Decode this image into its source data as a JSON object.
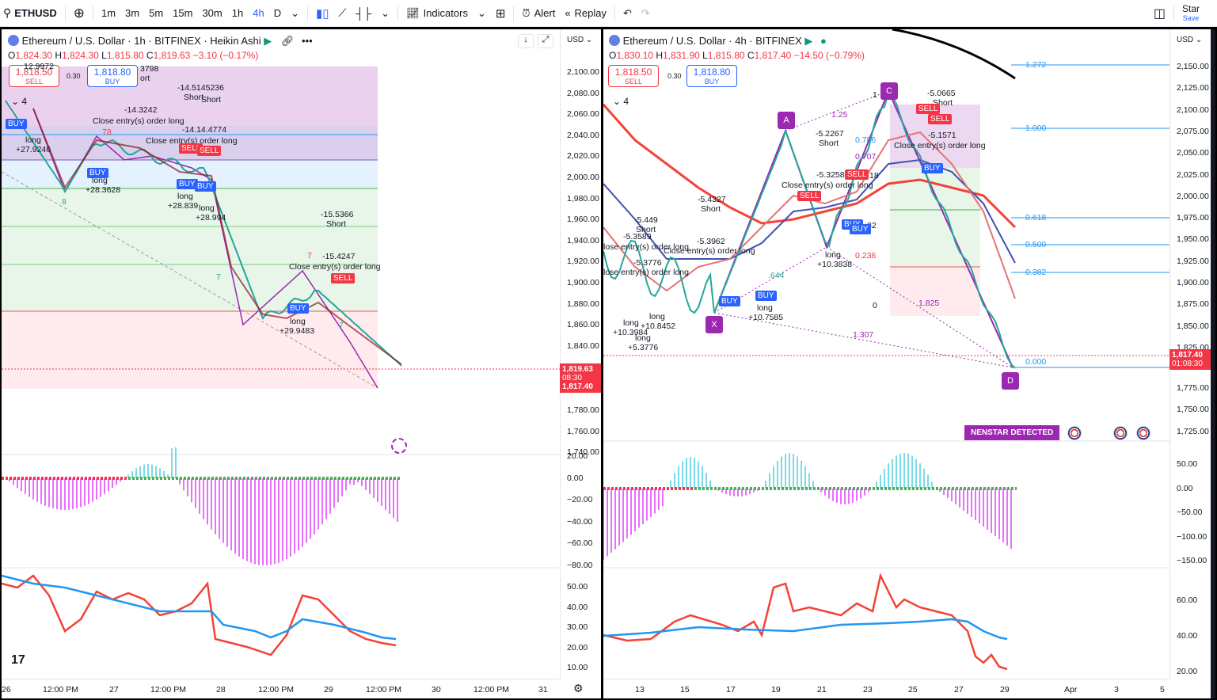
{
  "toolbar": {
    "symbol": "ETHUSD",
    "timeframes": [
      "1m",
      "3m",
      "5m",
      "15m",
      "30m",
      "1h",
      "4h",
      "D"
    ],
    "active_timeframe": "4h",
    "indicators_label": "Indicators",
    "alert_label": "Alert",
    "replay_label": "Replay",
    "right_label": "Star",
    "right_sub": "Save"
  },
  "left": {
    "title": "Ethereum / U.S. Dollar · 1h · BITFINEX · Heikin Ashi",
    "ohlc": {
      "o": "1,824.30",
      "h": "1,824.30",
      "l": "1,815.80",
      "c": "1,819.63",
      "chg": "−3.10 (−0.17%)"
    },
    "sell_price": "1,818.50",
    "sell_label": "SELL",
    "spread": "0.30",
    "buy_price": "1,818.80",
    "buy_label": "BUY",
    "currency": "USD",
    "counter": "4",
    "price_tag": {
      "price": "1,819.63",
      "time": "08:30",
      "low": "1,817.40"
    },
    "axis": [
      "2,100.00",
      "2,080.00",
      "2,060.00",
      "2,040.00",
      "2,020.00",
      "2,000.00",
      "1,980.00",
      "1,960.00",
      "1,940.00",
      "1,920.00",
      "1,900.00",
      "1,880.00",
      "1,860.00",
      "1,840.00",
      "1,780.00",
      "1,760.00",
      "1,740.00"
    ],
    "osc_axis": [
      "20.00",
      "0.00",
      "−20.00",
      "−40.00",
      "−60.00",
      "−80.00"
    ],
    "rsi_axis": [
      "50.00",
      "40.00",
      "30.00",
      "20.00",
      "10.00"
    ],
    "time_axis": [
      "26",
      "12:00 PM",
      "27",
      "12:00 PM",
      "28",
      "12:00 PM",
      "29",
      "12:00 PM",
      "30",
      "12:00 PM",
      "31"
    ],
    "labels": {
      "l1": "12.9972",
      "l2": "long",
      "l3": "+27.9246",
      "l4": "-14.3242",
      "l5": "Close entry(s) order long",
      "l6": "78",
      "l7": "-14.5145236",
      "l8": "Short",
      "l9": "Short",
      "l10": "-14.14.4774",
      "l11": "Close entry(s) order long",
      "l12": "long",
      "l13": "+28.3628",
      "l14": "long",
      "l15": "+28.839",
      "l16": "long",
      "l17": "+28.994",
      "l18": "-15.5366",
      "l19": "Short",
      "l20": "7",
      "l21": "-15.4247",
      "l22": "Close entry(s) order long",
      "l23": "long",
      "l24": "+29.9483",
      "l25": "8",
      "l26": "3798",
      "l27": "ort",
      "l28": "Short",
      "l29": "7",
      "l30": "7"
    }
  },
  "right": {
    "title": "Ethereum / U.S. Dollar · 4h · BITFINEX",
    "ohlc": {
      "o": "1,830.10",
      "h": "1,831.90",
      "l": "1,815.80",
      "c": "1,817.40",
      "chg": "−14.50 (−0.79%)"
    },
    "sell_price": "1,818.50",
    "sell_label": "SELL",
    "spread": "0.30",
    "buy_price": "1,818.80",
    "buy_label": "BUY",
    "currency": "USD",
    "counter": "4",
    "price_tag": {
      "price": "1,817.40",
      "time": "01:08:30"
    },
    "axis": [
      "2,150.00",
      "2,125.00",
      "2,100.00",
      "2,075.00",
      "2,050.00",
      "2,025.00",
      "2,000.00",
      "1,975.00",
      "1,950.00",
      "1,925.00",
      "1,900.00",
      "1,875.00",
      "1,850.00",
      "1,825.00",
      "1,775.00",
      "1,750.00",
      "1,725.00"
    ],
    "osc_axis": [
      "50.00",
      "0.00",
      "−50.00",
      "−100.00",
      "−150.00"
    ],
    "rsi_axis": [
      "60.00",
      "40.00",
      "20.00"
    ],
    "time_axis": [
      "13",
      "15",
      "17",
      "19",
      "21",
      "23",
      "25",
      "27",
      "29",
      "Apr",
      "3",
      "5"
    ],
    "fib": [
      "1.272",
      "1.000",
      "0.618",
      "0.500",
      "0.382",
      "0.000"
    ],
    "pattern": [
      "X",
      "A",
      "C",
      "D"
    ],
    "pattern_labels": {
      "r1": "1.25",
      "r2": "0.786",
      "r3": "0.707",
      "r4": "0.236",
      "r5": "1.825",
      "r6": "1.307",
      "r7": "0",
      "r8": "1",
      "r9": "18",
      "r10": "32",
      "r11": ".644"
    },
    "banner": "NENSTAR DETECTED",
    "labels": {
      "a1": "-5.449",
      "a2": "Short",
      "a3": "-5.3589",
      "a4": "lose entry(s) order long",
      "a5": "-5.3776",
      "a6": "lose entry(s) order long",
      "a7": "long",
      "a8": "+10.3984",
      "a9": "long",
      "a10": "+10.8452",
      "a11": "long",
      "a12": "+5.3776",
      "a13": "-5.4327",
      "a14": "Short",
      "a15": "-5.3962",
      "a16": "Close entry(s) order long",
      "a17": "long",
      "a18": "+10.7585",
      "a19": "-5.2267",
      "a20": "Short",
      "a21": "-5.3258",
      "a22": "Close entry(s) order long",
      "a23": "long",
      "a24": "+10.3838",
      "a25": "-5.0665",
      "a26": "Short",
      "a27": "-5.1571",
      "a28": "Close entry(s) order long"
    }
  },
  "colors": {
    "bull": "#26a69a",
    "bear": "#f23645",
    "accent": "#2962ff",
    "pattern": "#9c27b0",
    "rsi_blue": "#2196f3",
    "rsi_red": "#f44336"
  }
}
